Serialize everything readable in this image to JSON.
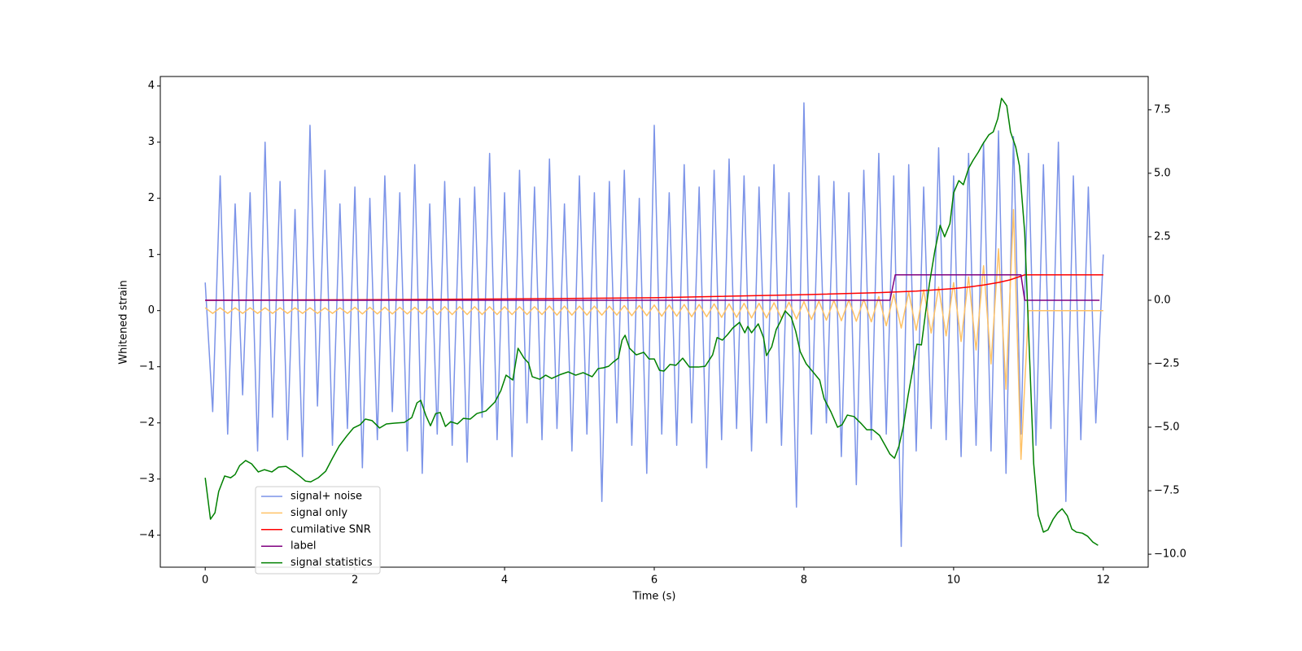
{
  "chart_data": {
    "type": "line",
    "xlabel": "Time (s)",
    "ylabel": "Whitened strain",
    "xlim": [
      -0.6,
      12.6
    ],
    "xticks": [
      0,
      2,
      4,
      6,
      8,
      10,
      12
    ],
    "ylim": [
      -4.57,
      4.17
    ],
    "yticks": [
      {
        "value": -4,
        "label": "−4"
      },
      {
        "value": -3,
        "label": "−3"
      },
      {
        "value": -2,
        "label": "−2"
      },
      {
        "value": -1,
        "label": "−1"
      },
      0,
      1,
      2,
      3,
      4
    ],
    "y2lim": [
      -10.51,
      8.81
    ],
    "y2ticks": [
      {
        "value": -10,
        "label": "−10.0"
      },
      {
        "value": -7.5,
        "label": "−7.5"
      },
      {
        "value": -5,
        "label": "−5.0"
      },
      {
        "value": -2.5,
        "label": "−2.5"
      },
      {
        "value": 0,
        "label": "0.0"
      },
      {
        "value": 2.5,
        "label": "2.5"
      },
      {
        "value": 5,
        "label": "5.0"
      },
      {
        "value": 7.5,
        "label": "7.5"
      }
    ],
    "legend": "lower left",
    "series": [
      {
        "name": "signal+ noise",
        "color": "#7b93e8",
        "x": [
          0,
          0.1,
          0.2,
          0.3,
          0.4,
          0.5,
          0.6,
          0.7,
          0.8,
          0.9,
          1,
          1.1,
          1.2,
          1.3,
          1.4,
          1.5,
          1.6,
          1.7,
          1.8,
          1.9,
          2,
          2.1,
          2.2,
          2.3,
          2.4,
          2.5,
          2.6,
          2.7,
          2.8,
          2.9,
          3,
          3.1,
          3.2,
          3.3,
          3.4,
          3.5,
          3.6,
          3.7,
          3.8,
          3.9,
          4,
          4.1,
          4.2,
          4.3,
          4.4,
          4.5,
          4.6,
          4.7,
          4.8,
          4.9,
          5,
          5.1,
          5.2,
          5.3,
          5.4,
          5.5,
          5.6,
          5.7,
          5.8,
          5.9,
          6,
          6.1,
          6.2,
          6.3,
          6.4,
          6.5,
          6.6,
          6.7,
          6.8,
          6.9,
          7,
          7.1,
          7.2,
          7.3,
          7.4,
          7.5,
          7.6,
          7.7,
          7.8,
          7.9,
          8,
          8.1,
          8.2,
          8.3,
          8.4,
          8.5,
          8.6,
          8.7,
          8.8,
          8.9,
          9,
          9.1,
          9.2,
          9.3,
          9.4,
          9.5,
          9.6,
          9.7,
          9.8,
          9.9,
          10,
          10.1,
          10.2,
          10.3,
          10.4,
          10.5,
          10.6,
          10.7,
          10.8,
          10.9,
          11,
          11.1,
          11.2,
          11.3,
          11.4,
          11.5,
          11.6,
          11.7,
          11.8,
          11.9,
          12
        ],
        "values": [
          0.5,
          -1.8,
          2.4,
          -2.2,
          1.9,
          -1.5,
          2.1,
          -2.5,
          3.0,
          -1.9,
          2.3,
          -2.3,
          1.8,
          -2.6,
          3.3,
          -1.7,
          2.5,
          -2.4,
          1.9,
          -2.1,
          2.2,
          -2.8,
          2.0,
          -2.3,
          2.4,
          -1.8,
          2.1,
          -2.5,
          2.6,
          -2.9,
          1.9,
          -2.2,
          2.3,
          -2.4,
          2.0,
          -2.7,
          2.2,
          -1.9,
          2.8,
          -2.3,
          2.1,
          -2.6,
          2.5,
          -2.0,
          2.2,
          -2.3,
          2.7,
          -2.1,
          1.9,
          -2.5,
          2.4,
          -2.2,
          2.1,
          -3.4,
          2.3,
          -2.0,
          2.5,
          -2.4,
          2.0,
          -2.9,
          3.3,
          -2.2,
          2.1,
          -2.4,
          2.6,
          -2.0,
          2.2,
          -2.8,
          2.5,
          -2.3,
          2.7,
          -2.1,
          2.4,
          -2.5,
          2.2,
          -2.0,
          2.6,
          -2.4,
          2.1,
          -3.5,
          3.7,
          -2.2,
          2.4,
          -2.0,
          2.3,
          -2.6,
          2.1,
          -3.1,
          2.5,
          -2.3,
          2.8,
          -2.2,
          2.4,
          -4.2,
          2.6,
          -2.5,
          2.2,
          -2.1,
          2.9,
          -2.3,
          2.4,
          -2.6,
          2.8,
          -2.4,
          3.0,
          -2.5,
          3.2,
          -2.9,
          3.1,
          -2.2,
          2.8,
          -2.4,
          2.6,
          -2.1,
          3.0,
          -3.4,
          2.4,
          -2.3,
          2.2,
          -2.0,
          1.0
        ]
      },
      {
        "name": "signal only",
        "color": "#ffc266",
        "x": [
          0,
          0.1,
          0.2,
          0.3,
          0.4,
          0.5,
          0.6,
          0.7,
          0.8,
          0.9,
          1,
          1.1,
          1.2,
          1.3,
          1.4,
          1.5,
          1.6,
          1.7,
          1.8,
          1.9,
          2,
          2.1,
          2.2,
          2.3,
          2.4,
          2.5,
          2.6,
          2.7,
          2.8,
          2.9,
          3,
          3.1,
          3.2,
          3.3,
          3.4,
          3.5,
          3.6,
          3.7,
          3.8,
          3.9,
          4,
          4.1,
          4.2,
          4.3,
          4.4,
          4.5,
          4.6,
          4.7,
          4.8,
          4.9,
          5,
          5.1,
          5.2,
          5.3,
          5.4,
          5.5,
          5.6,
          5.7,
          5.8,
          5.9,
          6,
          6.1,
          6.2,
          6.3,
          6.4,
          6.5,
          6.6,
          6.7,
          6.8,
          6.9,
          7,
          7.1,
          7.2,
          7.3,
          7.4,
          7.5,
          7.6,
          7.7,
          7.8,
          7.9,
          8,
          8.1,
          8.2,
          8.3,
          8.4,
          8.5,
          8.6,
          8.7,
          8.8,
          8.9,
          9,
          9.1,
          9.2,
          9.3,
          9.4,
          9.5,
          9.6,
          9.7,
          9.8,
          9.9,
          10,
          10.1,
          10.2,
          10.3,
          10.4,
          10.5,
          10.6,
          10.7,
          10.8,
          10.9,
          11,
          11.1,
          11.2,
          11.3,
          11.4,
          11.5,
          11.6,
          11.7,
          11.8,
          11.9,
          12
        ],
        "values": [
          0.05,
          -0.05,
          0.05,
          -0.05,
          0.05,
          -0.05,
          0.05,
          -0.05,
          0.05,
          -0.05,
          0.05,
          -0.05,
          0.05,
          -0.05,
          0.05,
          -0.05,
          0.05,
          -0.05,
          0.05,
          -0.05,
          0.06,
          -0.06,
          0.06,
          -0.06,
          0.06,
          -0.06,
          0.06,
          -0.06,
          0.06,
          -0.06,
          0.07,
          -0.07,
          0.07,
          -0.07,
          0.07,
          -0.07,
          0.07,
          -0.07,
          0.07,
          -0.07,
          0.07,
          -0.07,
          0.07,
          -0.07,
          0.07,
          -0.07,
          0.08,
          -0.08,
          0.08,
          -0.08,
          0.08,
          -0.08,
          0.08,
          -0.08,
          0.08,
          -0.08,
          0.09,
          -0.09,
          0.09,
          -0.09,
          0.1,
          -0.1,
          0.1,
          -0.1,
          0.11,
          -0.11,
          0.11,
          -0.11,
          0.12,
          -0.12,
          0.12,
          -0.12,
          0.13,
          -0.13,
          0.13,
          -0.13,
          0.14,
          -0.14,
          0.15,
          -0.15,
          0.16,
          -0.16,
          0.17,
          -0.17,
          0.18,
          -0.18,
          0.19,
          -0.19,
          0.2,
          -0.2,
          0.25,
          -0.27,
          0.29,
          -0.31,
          0.33,
          -0.35,
          0.37,
          -0.4,
          0.42,
          -0.45,
          0.5,
          -0.55,
          0.6,
          -0.7,
          0.8,
          -0.95,
          1.1,
          -1.4,
          1.8,
          -2.65,
          0,
          0,
          0,
          0,
          0,
          0,
          0,
          0,
          0,
          0,
          0
        ]
      },
      {
        "name": "cumilative SNR",
        "color": "#ff0000",
        "axis": "y2",
        "x": [
          0,
          2,
          4,
          6,
          8,
          9,
          9.5,
          10,
          10.2,
          10.4,
          10.6,
          10.75,
          10.85,
          10.95,
          12
        ],
        "values": [
          0,
          0.02,
          0.05,
          0.1,
          0.22,
          0.3,
          0.36,
          0.46,
          0.52,
          0.6,
          0.7,
          0.8,
          0.9,
          1.0,
          1.0
        ]
      },
      {
        "name": "label",
        "color": "#800080",
        "axis": "y2",
        "x": [
          0,
          9.15,
          9.22,
          10.9,
          10.95,
          11.95
        ],
        "values": [
          0,
          0,
          1,
          1,
          0,
          0
        ]
      },
      {
        "name": "signal statistics",
        "color": "#008000",
        "axis": "y2",
        "x": [
          0,
          0.07,
          0.13,
          0.18,
          0.26,
          0.34,
          0.4,
          0.46,
          0.54,
          0.62,
          0.71,
          0.79,
          0.89,
          0.98,
          1.08,
          1.16,
          1.26,
          1.34,
          1.41,
          1.51,
          1.61,
          1.7,
          1.79,
          1.89,
          1.98,
          2.07,
          2.14,
          2.23,
          2.33,
          2.42,
          2.53,
          2.66,
          2.76,
          2.83,
          2.88,
          2.95,
          3.01,
          3.08,
          3.14,
          3.21,
          3.28,
          3.37,
          3.45,
          3.54,
          3.63,
          3.75,
          3.87,
          3.95,
          4.02,
          4.11,
          4.18,
          4.26,
          4.32,
          4.37,
          4.47,
          4.55,
          4.63,
          4.75,
          4.85,
          4.95,
          5.05,
          5.17,
          5.25,
          5.32,
          5.39,
          5.45,
          5.52,
          5.57,
          5.61,
          5.67,
          5.76,
          5.86,
          5.93,
          6.0,
          6.07,
          6.13,
          6.21,
          6.29,
          6.38,
          6.47,
          6.59,
          6.68,
          6.78,
          6.84,
          6.91,
          6.98,
          7.05,
          7.14,
          7.21,
          7.25,
          7.3,
          7.39,
          7.46,
          7.5,
          7.57,
          7.63,
          7.68,
          7.75,
          7.83,
          7.89,
          7.95,
          8.03,
          8.12,
          8.21,
          8.27,
          8.36,
          8.45,
          8.51,
          8.58,
          8.67,
          8.76,
          8.84,
          8.92,
          9.01,
          9.09,
          9.15,
          9.21,
          9.27,
          9.33,
          9.39,
          9.45,
          9.51,
          9.57,
          9.63,
          9.68,
          9.75,
          9.82,
          9.88,
          9.95,
          10.0,
          10.07,
          10.13,
          10.2,
          10.26,
          10.33,
          10.39,
          10.47,
          10.53,
          10.59,
          10.64,
          10.71,
          10.76,
          10.83,
          10.88,
          10.95,
          11.01,
          11.07,
          11.13,
          11.2,
          11.26,
          11.33,
          11.39,
          11.45,
          11.52,
          11.58,
          11.64,
          11.72,
          11.79,
          11.86,
          11.93
        ],
        "values": [
          -6.99,
          -8.62,
          -8.37,
          -7.53,
          -6.92,
          -6.99,
          -6.86,
          -6.51,
          -6.31,
          -6.44,
          -6.76,
          -6.67,
          -6.76,
          -6.57,
          -6.54,
          -6.7,
          -6.92,
          -7.12,
          -7.15,
          -6.99,
          -6.73,
          -6.22,
          -5.74,
          -5.35,
          -5.03,
          -4.9,
          -4.68,
          -4.74,
          -5.03,
          -4.87,
          -4.84,
          -4.81,
          -4.62,
          -4.04,
          -3.94,
          -4.55,
          -4.94,
          -4.46,
          -4.42,
          -4.97,
          -4.78,
          -4.87,
          -4.65,
          -4.68,
          -4.46,
          -4.36,
          -4.01,
          -3.56,
          -2.95,
          -3.14,
          -1.89,
          -2.28,
          -2.47,
          -3.01,
          -3.11,
          -2.95,
          -3.08,
          -2.92,
          -2.82,
          -2.95,
          -2.85,
          -3.01,
          -2.69,
          -2.66,
          -2.6,
          -2.44,
          -2.28,
          -1.57,
          -1.38,
          -1.89,
          -2.15,
          -2.05,
          -2.31,
          -2.31,
          -2.76,
          -2.79,
          -2.53,
          -2.56,
          -2.28,
          -2.63,
          -2.63,
          -2.6,
          -2.15,
          -1.47,
          -1.57,
          -1.35,
          -1.09,
          -0.87,
          -1.28,
          -1.03,
          -1.28,
          -0.93,
          -1.47,
          -2.18,
          -1.83,
          -1.15,
          -0.87,
          -0.42,
          -0.67,
          -1.22,
          -2.02,
          -2.5,
          -2.82,
          -3.14,
          -3.88,
          -4.39,
          -5.0,
          -4.9,
          -4.52,
          -4.58,
          -4.84,
          -5.1,
          -5.1,
          -5.32,
          -5.74,
          -6.06,
          -6.22,
          -5.74,
          -4.94,
          -3.78,
          -2.79,
          -1.73,
          -1.76,
          -0.38,
          0.71,
          1.96,
          2.95,
          2.5,
          3.01,
          4.23,
          4.71,
          4.55,
          5.19,
          5.51,
          5.83,
          6.15,
          6.51,
          6.63,
          7.15,
          7.95,
          7.66,
          6.63,
          6.03,
          5.29,
          2.66,
          -1.86,
          -6.44,
          -8.46,
          -9.13,
          -9.04,
          -8.62,
          -8.37,
          -8.21,
          -8.49,
          -9.01,
          -9.13,
          -9.17,
          -9.29,
          -9.52,
          -9.65
        ]
      }
    ]
  }
}
